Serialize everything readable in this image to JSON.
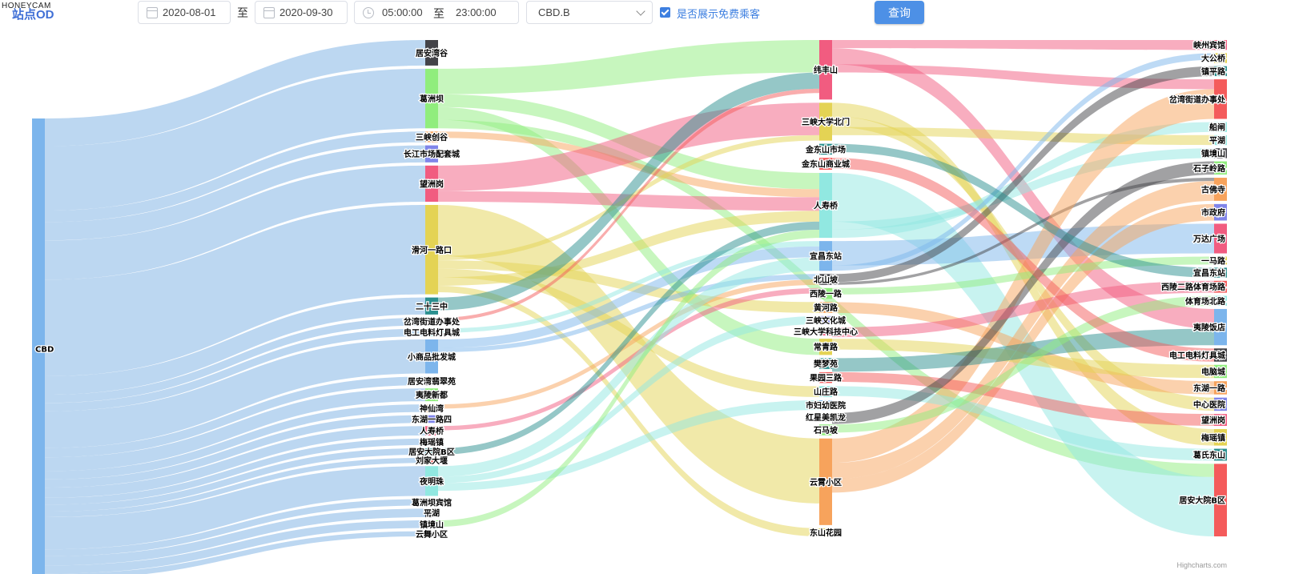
{
  "watermark": "HONEYCAM",
  "header": {
    "title": "站点OD",
    "start_date": "2020-08-01",
    "to_label": "至",
    "end_date": "2020-09-30",
    "start_time": "05:00:00",
    "end_time": "23:00:00",
    "station_select": "CBD.B",
    "free_checkbox_label": "是否展示免费乘客",
    "free_checked": true,
    "query_button": "查询"
  },
  "credits": "Highcharts.com",
  "colors": {
    "link_default": "#bcd7f1",
    "accent": "#4d90e6"
  },
  "chart_data": {
    "type": "sankey",
    "columns": [
      [
        "CBD"
      ],
      [
        "居安湾谷",
        "葛洲坝",
        "三峡创谷",
        "长江市场配套城",
        "望洲岗",
        "滑河一路口",
        "二十三中",
        "岔湾街道办事处",
        "电工电料灯具城",
        "小商品批发城",
        "居安湾翡翠苑",
        "夷陵新都",
        "神仙湾",
        "东湖一路四",
        "人寿桥",
        "梅瑶镇",
        "居安大院B区",
        "刘家大堰",
        "夜明珠",
        "葛洲坝宾馆",
        "平湖",
        "镇境山",
        "云舞小区"
      ],
      [
        "纬丰山",
        "三峡大学北门",
        "金东山市场",
        "金东山商业城",
        "人寿桥",
        "宜昌东站",
        "北山坡",
        "西陵一路",
        "黄河路",
        "三峡文化城",
        "三峡大学科技中心",
        "常青路",
        "樊梦苑",
        "果园三路",
        "山庄路",
        "市妇幼医院",
        "红星美凯龙",
        "石马坡",
        "云霄小区",
        "东山花园"
      ],
      [
        "峡州宾馆",
        "大公桥",
        "镇平路",
        "岔湾街道办事处",
        "船闸",
        "平湖",
        "镇境山",
        "石子岭路",
        "古佛寺",
        "市政府",
        "万达广场",
        "一马路",
        "宜昌东站",
        "西陵二路体育场路",
        "体育场北路",
        "夷陵饭店",
        "电工电料灯具城",
        "电脑城",
        "东湖一路",
        "中心医院",
        "望洲岗",
        "梅瑶镇",
        "葛氏东山",
        "居安大院B区"
      ]
    ],
    "node_weights": {
      "CBD": 100,
      "居安湾谷": 6,
      "葛洲坝": 14,
      "三峡创谷": 2.5,
      "长江市场配套城": 4,
      "望洲岗": 8.5,
      "滑河一路口": 21,
      "二十三中": 4,
      "岔湾街道办事处": 1.8,
      "电工电料灯具城": 1.8,
      "小商品批发城": 8,
      "居安湾翡翠苑": 2,
      "夷陵新都": 3,
      "神仙湾": 1.8,
      "东湖一路四": 1.8,
      "人寿桥": 2.2,
      "梅瑶镇": 1.5,
      "居安大院B区": 1.5,
      "刘家大堰": 1.2,
      "夜明珠": 7,
      "葛洲坝宾馆": 1.5,
      "平湖": 2,
      "镇境山": 1.8,
      "云舞小区": 1.2,
      "纬丰山": 11,
      "三峡大学北门": 7,
      "金东山市场": 2,
      "金东山商业城": 2.2,
      "人寿桥_c2": 12,
      "宜昌东站": 5.5,
      "北山坡": 2,
      "西陵一路": 2,
      "黄河路": 2,
      "三峡文化城": 1.5,
      "三峡大学科技中心": 1.5,
      "常青路": 3,
      "樊梦苑": 2,
      "果园三路": 2,
      "山庄路": 2,
      "市妇幼医院": 1.8,
      "红星美凯龙": 1.5,
      "石马坡": 2,
      "云霄小区": 16,
      "东山花园": 1.5,
      "峡州宾馆": 1.5,
      "大公桥": 1.5,
      "镇平路": 1.5,
      "岔湾街道办事处_c3": 6,
      "船闸": 1.5,
      "平湖_c3": 1.5,
      "镇境山_c3": 1.5,
      "石子岭路": 2,
      "古佛寺": 3.5,
      "市政府": 2.5,
      "万达广场": 4.5,
      "一马路": 1.2,
      "宜昌东站_c3": 1.5,
      "西陵二路体育场路": 1.8,
      "体育场北路": 1.5,
      "夷陵饭店": 5.5,
      "电工电料灯具城_c3": 2,
      "电脑城": 2,
      "东湖一路": 2,
      "中心医院": 2,
      "望洲岗_c3": 1.8,
      "梅瑶镇_c3": 2.5,
      "葛氏东山": 1.8,
      "居安大院B区_c3": 11
    },
    "node_colors": {
      "CBD": "#7cb5ec",
      "居安湾谷": "#434348",
      "葛洲坝": "#90ed7d",
      "三峡创谷": "#f7a35c",
      "长江市场配套城": "#8085e9",
      "望洲岗": "#f15c80",
      "滑河一路口": "#e4d354",
      "二十三中": "#2b908f",
      "岔湾街道办事处": "#f45b5b",
      "电工电料灯具城": "#91e8e1",
      "小商品批发城": "#7cb5ec",
      "居安湾翡翠苑": "#434348",
      "夷陵新都": "#90ed7d",
      "神仙湾": "#f7a35c",
      "东湖一路四": "#8085e9",
      "人寿桥": "#f15c80",
      "梅瑶镇": "#e4d354",
      "居安大院B区": "#2b908f",
      "刘家大堰": "#f45b5b",
      "夜明珠": "#91e8e1",
      "葛洲坝宾馆": "#7cb5ec",
      "平湖": "#434348",
      "镇境山": "#90ed7d",
      "云舞小区": "#8085e9",
      "纬丰山": "#f15c80",
      "三峡大学北门": "#e4d354",
      "金东山市场": "#2b908f",
      "金东山商业城": "#f45b5b",
      "人寿桥_c2": "#91e8e1",
      "宜昌东站": "#7cb5ec",
      "北山坡": "#434348",
      "西陵一路": "#90ed7d",
      "黄河路": "#f7a35c",
      "三峡文化城": "#8085e9",
      "三峡大学科技中心": "#f15c80",
      "常青路": "#e4d354",
      "樊梦苑": "#2b908f",
      "果园三路": "#f45b5b",
      "山庄路": "#91e8e1",
      "市妇幼医院": "#7cb5ec",
      "红星美凯龙": "#434348",
      "石马坡": "#90ed7d",
      "云霄小区": "#f7a35c",
      "东山花园": "#e4d354",
      "峡州宾馆": "#f15c80",
      "大公桥": "#e4d354",
      "镇平路": "#2b908f",
      "岔湾街道办事处_c3": "#f45b5b",
      "船闸": "#91e8e1",
      "平湖_c3": "#91e8e1",
      "镇境山_c3": "#434348",
      "石子岭路": "#90ed7d",
      "古佛寺": "#f7a35c",
      "市政府": "#8085e9",
      "万达广场": "#f15c80",
      "一马路": "#e4d354",
      "宜昌东站_c3": "#2b908f",
      "西陵二路体育场路": "#f45b5b",
      "体育场北路": "#91e8e1",
      "夷陵饭店": "#7cb5ec",
      "电工电料灯具城_c3": "#434348",
      "电脑城": "#90ed7d",
      "东湖一路": "#f7a35c",
      "中心医院": "#8085e9",
      "望洲岗_c3": "#f15c80",
      "梅瑶镇_c3": "#e4d354",
      "葛氏东山": "#2b908f",
      "居安大院B区_c3": "#f45b5b"
    },
    "links": [
      [
        "CBD",
        "居安湾谷",
        6
      ],
      [
        "CBD",
        "葛洲坝",
        14
      ],
      [
        "CBD",
        "三峡创谷",
        2.5
      ],
      [
        "CBD",
        "长江市场配套城",
        4
      ],
      [
        "CBD",
        "望洲岗",
        8.5
      ],
      [
        "CBD",
        "滑河一路口",
        21
      ],
      [
        "CBD",
        "二十三中",
        4
      ],
      [
        "CBD",
        "岔湾街道办事处",
        1.8
      ],
      [
        "CBD",
        "电工电料灯具城",
        1.8
      ],
      [
        "CBD",
        "小商品批发城",
        8
      ],
      [
        "CBD",
        "居安湾翡翠苑",
        2
      ],
      [
        "CBD",
        "夷陵新都",
        3
      ],
      [
        "CBD",
        "神仙湾",
        1.8
      ],
      [
        "CBD",
        "东湖一路四",
        1.8
      ],
      [
        "CBD",
        "人寿桥",
        2.2
      ],
      [
        "CBD",
        "梅瑶镇",
        1.5
      ],
      [
        "CBD",
        "居安大院B区",
        1.5
      ],
      [
        "CBD",
        "刘家大堰",
        1.2
      ],
      [
        "CBD",
        "夜明珠",
        7
      ],
      [
        "CBD",
        "葛洲坝宾馆",
        1.5
      ],
      [
        "CBD",
        "平湖",
        2
      ],
      [
        "CBD",
        "镇境山",
        1.8
      ],
      [
        "CBD",
        "云舞小区",
        1.2
      ],
      [
        "葛洲坝",
        "纬丰山",
        6
      ],
      [
        "葛洲坝",
        "人寿桥_c2",
        3
      ],
      [
        "葛洲坝",
        "常青路",
        3
      ],
      [
        "葛洲坝",
        "居安大院B区_c3",
        2
      ],
      [
        "三峡创谷",
        "人寿桥_c2",
        1.5
      ],
      [
        "望洲岗",
        "三峡大学北门",
        6
      ],
      [
        "望洲岗",
        "人寿桥_c2",
        2.5
      ],
      [
        "滑河一路口",
        "云霄小区",
        12
      ],
      [
        "滑河一路口",
        "三峡大学北门",
        1
      ],
      [
        "滑河一路口",
        "黄河路",
        2
      ],
      [
        "滑河一路口",
        "山庄路",
        2
      ],
      [
        "滑河一路口",
        "人寿桥_c2",
        2
      ],
      [
        "滑河一路口",
        "东山花园",
        1.5
      ],
      [
        "二十三中",
        "纬丰山",
        3
      ],
      [
        "岔湾街道办事处",
        "纬丰山",
        0.8
      ],
      [
        "电工电料灯具城",
        "宜昌东站",
        1
      ],
      [
        "小商品批发城",
        "宜昌东站",
        2
      ],
      [
        "小商品批发城",
        "北山坡",
        1
      ],
      [
        "神仙湾",
        "北山坡",
        1
      ],
      [
        "人寿桥",
        "西陵一路",
        1
      ],
      [
        "居安大院B区",
        "人寿桥_c2",
        1.5
      ],
      [
        "夜明珠",
        "宜昌东站",
        2.5
      ],
      [
        "夜明珠",
        "三峡文化城",
        1.5
      ],
      [
        "夜明珠",
        "市妇幼医院",
        1.8
      ],
      [
        "镇境山",
        "人寿桥_c2",
        1.5
      ],
      [
        "纬丰山",
        "峡州宾馆",
        1.5
      ],
      [
        "纬丰山",
        "夷陵饭店",
        3
      ],
      [
        "纬丰山",
        "岔湾街道办事处_c3",
        1.5
      ],
      [
        "三峡大学北门",
        "梅瑶镇_c3",
        2.5
      ],
      [
        "三峡大学北门",
        "中心医院",
        2
      ],
      [
        "三峡大学北门",
        "平湖_c3",
        1.5
      ],
      [
        "人寿桥_c2",
        "居安大院B区_c3",
        9
      ],
      [
        "人寿桥_c2",
        "镇境山_c3",
        1.5
      ],
      [
        "人寿桥_c2",
        "船闸",
        1.5
      ],
      [
        "宜昌东站",
        "万达广场",
        4.5
      ],
      [
        "宜昌东站",
        "大公桥",
        1
      ],
      [
        "北山坡",
        "镇平路",
        1.5
      ],
      [
        "北山坡",
        "古佛寺",
        0.5
      ],
      [
        "云霄小区",
        "岔湾街道办事处_c3",
        4.5
      ],
      [
        "云霄小区",
        "古佛寺",
        3
      ],
      [
        "云霄小区",
        "市政府",
        2.5
      ],
      [
        "西陵一路",
        "一马路",
        1.2
      ],
      [
        "黄河路",
        "东湖一路",
        2
      ],
      [
        "常青路",
        "电脑城",
        2
      ],
      [
        "樊梦苑",
        "夷陵饭店",
        2.5
      ],
      [
        "果园三路",
        "望洲岗_c3",
        1.8
      ],
      [
        "山庄路",
        "葛氏东山",
        1.8
      ],
      [
        "红星美凯龙",
        "石子岭路",
        2
      ],
      [
        "三峡大学科技中心",
        "西陵二路体育场路",
        1.8
      ],
      [
        "石马坡",
        "体育场北路",
        1.5
      ],
      [
        "金东山市场",
        "宜昌东站_c3",
        1.5
      ],
      [
        "金东山商业城",
        "电工电料灯具城_c3",
        2
      ]
    ],
    "label_map": {
      "人寿桥_c2": "人寿桥",
      "宜昌东站_c3": "宜昌东站",
      "岔湾街道办事处_c3": "岔湾街道办事处",
      "平湖_c3": "平湖",
      "镇境山_c3": "镇境山",
      "电工电料灯具城_c3": "电工电料灯具城",
      "望洲岗_c3": "望洲岗",
      "梅瑶镇_c3": "梅瑶镇",
      "居安大院B区_c3": "居安大院B区"
    }
  }
}
